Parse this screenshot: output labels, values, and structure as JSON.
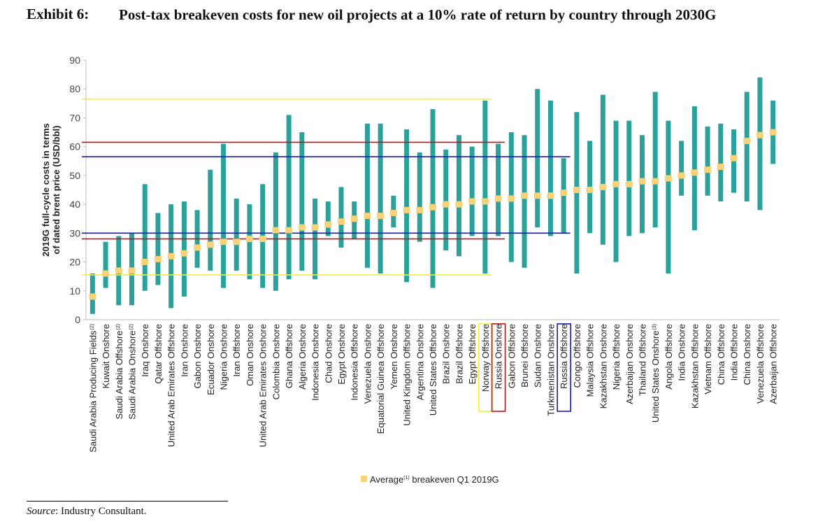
{
  "exhibit": {
    "label": "Exhibit 6:",
    "title": "Post-tax breakeven costs for new oil projects at a 10% rate of return by country through 2030G"
  },
  "source": {
    "label": "Source",
    "text": ": Industry Consultant."
  },
  "chart_data": {
    "type": "bar",
    "subtype": "floating-range-with-average-marker",
    "ylabel": "2019G full-cycle costs in terms of dated brent price (USD/bbl)",
    "ylim": [
      0,
      90
    ],
    "yticks": [
      0,
      10,
      20,
      30,
      40,
      50,
      60,
      70,
      80,
      90
    ],
    "legend": {
      "label": "Average",
      "superscript": "(1)",
      "suffix": " breakeven Q1 2019G",
      "placement": "bottom-center"
    },
    "colors": {
      "range": "#2aa19b",
      "average": "#f6d37b",
      "yellow": "#f0ef3a",
      "red": "#c0141b",
      "blue": "#1a1ab4"
    },
    "categories": [
      {
        "name": "Saudi Arabia  Producing Fields",
        "sup": "(2)",
        "low": 2,
        "high": 16,
        "avg": 8
      },
      {
        "name": "Kuwait Onshore",
        "sup": "",
        "low": 11,
        "high": 27,
        "avg": 16
      },
      {
        "name": "Saudi Arabia Offshore",
        "sup": "(2)",
        "low": 5,
        "high": 29,
        "avg": 17
      },
      {
        "name": "Saudi Arabia Onshore",
        "sup": "(2)",
        "low": 5,
        "high": 30,
        "avg": 17
      },
      {
        "name": "Iraq Onshore",
        "sup": "",
        "low": 10,
        "high": 47,
        "avg": 20
      },
      {
        "name": "Qatar Offshore",
        "sup": "",
        "low": 12,
        "high": 37,
        "avg": 21
      },
      {
        "name": "United Arab Emirates Offshore",
        "sup": "",
        "low": 4,
        "high": 40,
        "avg": 22
      },
      {
        "name": "Iran Onshore",
        "sup": "",
        "low": 8,
        "high": 41,
        "avg": 23
      },
      {
        "name": "Gabon Onshore",
        "sup": "",
        "low": 18,
        "high": 38,
        "avg": 25
      },
      {
        "name": "Ecuador Onshore",
        "sup": "",
        "low": 17,
        "high": 52,
        "avg": 26
      },
      {
        "name": "Nigeria Onshore",
        "sup": "",
        "low": 11,
        "high": 61,
        "avg": 27
      },
      {
        "name": "Iran Offshore",
        "sup": "",
        "low": 17,
        "high": 42,
        "avg": 27
      },
      {
        "name": "Oman Onshore",
        "sup": "",
        "low": 14,
        "high": 40,
        "avg": 28
      },
      {
        "name": "United Arab Emirates Onshore",
        "sup": "",
        "low": 11,
        "high": 47,
        "avg": 28
      },
      {
        "name": "Colombia Onshore",
        "sup": "",
        "low": 10,
        "high": 58,
        "avg": 31
      },
      {
        "name": "Ghana Offshore",
        "sup": "",
        "low": 14,
        "high": 71,
        "avg": 31
      },
      {
        "name": "Algeria Onshore",
        "sup": "",
        "low": 17,
        "high": 65,
        "avg": 32
      },
      {
        "name": "Indonesia Onshore",
        "sup": "",
        "low": 14,
        "high": 42,
        "avg": 32
      },
      {
        "name": "Chad Onshore",
        "sup": "",
        "low": 29,
        "high": 41,
        "avg": 33
      },
      {
        "name": "Egypt Onshore",
        "sup": "",
        "low": 25,
        "high": 46,
        "avg": 34
      },
      {
        "name": "Indonesia Offshore",
        "sup": "",
        "low": 28,
        "high": 41,
        "avg": 35
      },
      {
        "name": "Venezuela Onshore",
        "sup": "",
        "low": 18,
        "high": 68,
        "avg": 36
      },
      {
        "name": "Equatorial Guinea Offshore",
        "sup": "",
        "low": 16,
        "high": 68,
        "avg": 36
      },
      {
        "name": "Yemen Onshore",
        "sup": "",
        "low": 32,
        "high": 43,
        "avg": 37
      },
      {
        "name": "United Kingdom Offshore",
        "sup": "",
        "low": 13,
        "high": 66,
        "avg": 38
      },
      {
        "name": "Argentina Onshore",
        "sup": "",
        "low": 27,
        "high": 58,
        "avg": 38
      },
      {
        "name": "United States Offshore",
        "sup": "",
        "low": 11,
        "high": 73,
        "avg": 39
      },
      {
        "name": "Brazil Onshore",
        "sup": "",
        "low": 24,
        "high": 59,
        "avg": 40
      },
      {
        "name": "Brazil Offshore",
        "sup": "",
        "low": 22,
        "high": 64,
        "avg": 40
      },
      {
        "name": "Egypt Offshore",
        "sup": "",
        "low": 29,
        "high": 60,
        "avg": 41
      },
      {
        "name": "Norway Offshore",
        "sup": "",
        "low": 16,
        "high": 76,
        "avg": 41
      },
      {
        "name": "Russia Onshore",
        "sup": "",
        "low": 29,
        "high": 61,
        "avg": 42
      },
      {
        "name": "Gabon Offshore",
        "sup": "",
        "low": 20,
        "high": 65,
        "avg": 42
      },
      {
        "name": "Brunei Offshore",
        "sup": "",
        "low": 18,
        "high": 64,
        "avg": 43
      },
      {
        "name": "Sudan Onshore",
        "sup": "",
        "low": 32,
        "high": 80,
        "avg": 43
      },
      {
        "name": "Turkmenistan Onshore",
        "sup": "",
        "low": 29,
        "high": 76,
        "avg": 43
      },
      {
        "name": "Russia Offshore",
        "sup": "",
        "low": 30,
        "high": 56,
        "avg": 44
      },
      {
        "name": "Congo Offshore",
        "sup": "",
        "low": 16,
        "high": 72,
        "avg": 45
      },
      {
        "name": "Malaysia Offshore",
        "sup": "",
        "low": 30,
        "high": 62,
        "avg": 45
      },
      {
        "name": "Kazakhstan Onshore",
        "sup": "",
        "low": 26,
        "high": 78,
        "avg": 46
      },
      {
        "name": "Nigeria Offshore",
        "sup": "",
        "low": 20,
        "high": 69,
        "avg": 47
      },
      {
        "name": "Azerbaijan Onshore",
        "sup": "",
        "low": 29,
        "high": 69,
        "avg": 47
      },
      {
        "name": "Thailand Offshore",
        "sup": "",
        "low": 30,
        "high": 64,
        "avg": 48
      },
      {
        "name": "United States Onshore",
        "sup": "(3)",
        "low": 32,
        "high": 79,
        "avg": 48
      },
      {
        "name": "Angola Offshore",
        "sup": "",
        "low": 16,
        "high": 69,
        "avg": 49
      },
      {
        "name": "India Onshore",
        "sup": "",
        "low": 43,
        "high": 62,
        "avg": 50
      },
      {
        "name": "Kazakhstan Offshore",
        "sup": "",
        "low": 31,
        "high": 74,
        "avg": 51
      },
      {
        "name": "Vietnam Offshore",
        "sup": "",
        "low": 43,
        "high": 67,
        "avg": 52
      },
      {
        "name": "China Offshore",
        "sup": "",
        "low": 41,
        "high": 68,
        "avg": 53
      },
      {
        "name": "India Offshore",
        "sup": "",
        "low": 44,
        "high": 66,
        "avg": 56
      },
      {
        "name": "China Onshore",
        "sup": "",
        "low": 41,
        "high": 79,
        "avg": 62
      },
      {
        "name": "Venezuela Offshore",
        "sup": "",
        "low": 38,
        "high": 84,
        "avg": 64
      },
      {
        "name": "Azerbaijan Offshore",
        "sup": "",
        "low": 54,
        "high": 76,
        "avg": 65
      }
    ],
    "reference_lines": [
      {
        "name": "norway-high",
        "color": "yellow",
        "y": 76.5,
        "from": "Saudi Arabia  Producing Fields",
        "to": "Norway Offshore"
      },
      {
        "name": "norway-low",
        "color": "yellow",
        "y": 15.5,
        "from": "Saudi Arabia  Producing Fields",
        "to": "Norway Offshore"
      },
      {
        "name": "russia-onshore-high",
        "color": "red",
        "y": 61.5,
        "from": "Saudi Arabia  Producing Fields",
        "to": "Russia Onshore"
      },
      {
        "name": "russia-onshore-low",
        "color": "red",
        "y": 28,
        "from": "Saudi Arabia  Producing Fields",
        "to": "Russia Onshore"
      },
      {
        "name": "russia-offshore-high",
        "color": "blue",
        "y": 56.5,
        "from": "Saudi Arabia  Producing Fields",
        "to": "Russia Offshore"
      },
      {
        "name": "russia-offshore-low",
        "color": "blue",
        "y": 30,
        "from": "Saudi Arabia  Producing Fields",
        "to": "Russia Offshore"
      }
    ],
    "highlight_boxes": [
      {
        "category": "Norway Offshore",
        "color": "yellow"
      },
      {
        "category": "Russia Onshore",
        "color": "red"
      },
      {
        "category": "Russia Offshore",
        "color": "blue"
      }
    ]
  }
}
